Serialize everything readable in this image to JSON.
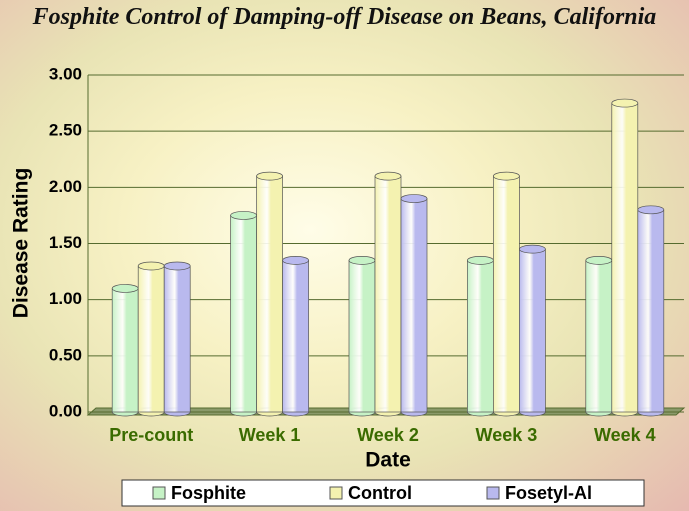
{
  "chart_data": {
    "type": "bar",
    "title": "Fosphite Control of Damping-off Disease on Beans, California",
    "x_label": "Date",
    "y_label": "Disease Rating",
    "categories": [
      "Pre-count",
      "Week 1",
      "Week 2",
      "Week 3",
      "Week 4"
    ],
    "series": [
      {
        "name": "Fosphite",
        "color": "#c6f2c6",
        "values": [
          1.1,
          1.75,
          1.35,
          1.35,
          1.35
        ]
      },
      {
        "name": "Control",
        "color": "#f4f2b0",
        "values": [
          1.3,
          2.1,
          2.1,
          2.1,
          2.75
        ]
      },
      {
        "name": "Fosetyl-Al",
        "color": "#b9b9ee",
        "values": [
          1.3,
          1.35,
          1.9,
          1.45,
          1.8
        ]
      }
    ],
    "ylim": [
      0,
      3
    ],
    "yticks": [
      {
        "value": 0,
        "label": "0.00"
      },
      {
        "value": 0.5,
        "label": "0.50"
      },
      {
        "value": 1,
        "label": "1.00"
      },
      {
        "value": 1.5,
        "label": "1.50"
      },
      {
        "value": 2,
        "label": "2.00"
      },
      {
        "value": 2.5,
        "label": "2.50"
      },
      {
        "value": 3,
        "label": "3.00"
      }
    ],
    "grid": true,
    "legend": "bottom"
  }
}
